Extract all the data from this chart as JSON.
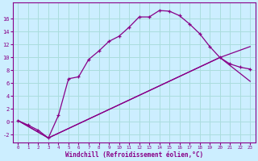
{
  "xlabel": "Windchill (Refroidissement éolien,°C)",
  "background_color": "#cceeff",
  "grid_color": "#aadddd",
  "line_color": "#880088",
  "xlim": [
    -0.5,
    23.5
  ],
  "ylim": [
    -3.2,
    18.5
  ],
  "xticks": [
    0,
    1,
    2,
    3,
    4,
    5,
    6,
    7,
    8,
    9,
    10,
    11,
    12,
    13,
    14,
    15,
    16,
    17,
    18,
    19,
    20,
    21,
    22,
    23
  ],
  "yticks": [
    -2,
    0,
    2,
    4,
    6,
    8,
    10,
    12,
    14,
    16
  ],
  "curve1_x": [
    0,
    1,
    2,
    3,
    4,
    5,
    6,
    7,
    8,
    9,
    10,
    11,
    12,
    13,
    14,
    15,
    16,
    17,
    18,
    19,
    20,
    21,
    22,
    23
  ],
  "curve1_y": [
    0.2,
    -0.5,
    -1.3,
    -2.5,
    1.0,
    6.7,
    7.0,
    9.7,
    11.0,
    12.5,
    13.3,
    14.7,
    16.3,
    16.3,
    17.3,
    17.2,
    16.5,
    15.2,
    13.7,
    11.7,
    10.0,
    9.0,
    8.5,
    8.2
  ],
  "curve2_x": [
    0,
    3,
    20,
    23
  ],
  "curve2_y": [
    0.2,
    -2.5,
    10.0,
    6.3
  ],
  "curve3_x": [
    0,
    3,
    20,
    23
  ],
  "curve3_y": [
    0.2,
    -2.5,
    10.0,
    11.7
  ],
  "line2_x": [
    0,
    23
  ],
  "line2_y": [
    0.2,
    6.3
  ],
  "line3_x": [
    0,
    23
  ],
  "line3_y": [
    0.2,
    11.7
  ]
}
